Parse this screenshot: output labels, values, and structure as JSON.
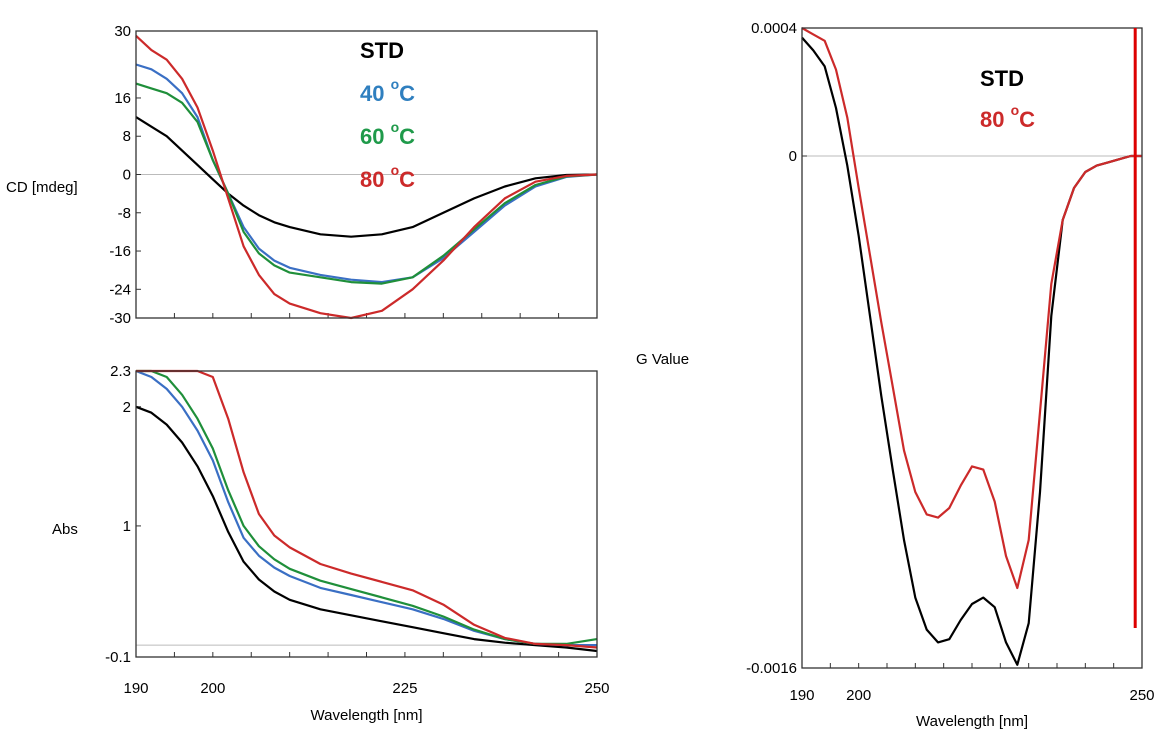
{
  "chart_data": [
    {
      "type": "line",
      "panel": "CD",
      "ylabel": "CD [mdeg]",
      "xlabel": "",
      "xlim": [
        190,
        250
      ],
      "ylim": [
        -30,
        30
      ],
      "xticks": [
        190,
        200,
        225,
        250
      ],
      "yticks": [
        30,
        16,
        8,
        0,
        -8,
        -16,
        -24,
        -30
      ],
      "show_x_ticklabels": false,
      "zero_line": true,
      "legend_position": "top-center",
      "series": [
        {
          "name": "STD",
          "color": "#000000",
          "x": [
            190,
            192,
            194,
            196,
            198,
            200,
            202,
            204,
            206,
            208,
            210,
            214,
            218,
            222,
            226,
            230,
            234,
            238,
            242,
            246,
            250
          ],
          "y": [
            12,
            10,
            8,
            5,
            2,
            -1,
            -4,
            -6.5,
            -8.5,
            -10,
            -11,
            -12.5,
            -13,
            -12.5,
            -11,
            -8,
            -5,
            -2.5,
            -0.8,
            -0.1,
            0
          ]
        },
        {
          "name": "40 °C",
          "color": "#3a6fc4",
          "x": [
            190,
            192,
            194,
            196,
            198,
            200,
            202,
            204,
            206,
            208,
            210,
            214,
            218,
            222,
            226,
            230,
            234,
            238,
            242,
            246,
            250
          ],
          "y": [
            23,
            22,
            20,
            17,
            12,
            3,
            -4,
            -11,
            -15.5,
            -18,
            -19.5,
            -21,
            -22,
            -22.5,
            -21.5,
            -17.5,
            -12,
            -6.5,
            -2.5,
            -0.5,
            0
          ]
        },
        {
          "name": "60 °C",
          "color": "#1f8f3a",
          "x": [
            190,
            192,
            194,
            196,
            198,
            200,
            202,
            204,
            206,
            208,
            210,
            214,
            218,
            222,
            226,
            230,
            234,
            238,
            242,
            246,
            250
          ],
          "y": [
            19,
            18,
            17,
            15,
            11,
            3,
            -4,
            -12,
            -16.5,
            -19,
            -20.5,
            -21.5,
            -22.5,
            -22.8,
            -21.5,
            -17,
            -11.5,
            -6,
            -2.2,
            -0.4,
            0
          ]
        },
        {
          "name": "80 °C",
          "color": "#cc2a2a",
          "x": [
            190,
            192,
            194,
            196,
            198,
            200,
            202,
            204,
            206,
            208,
            210,
            214,
            218,
            222,
            226,
            230,
            234,
            238,
            242,
            246,
            250
          ],
          "y": [
            29,
            26,
            24,
            20,
            14,
            5,
            -5,
            -15,
            -21,
            -25,
            -27,
            -29,
            -30,
            -28.5,
            -24,
            -18,
            -11,
            -5,
            -1.5,
            -0.3,
            0
          ]
        }
      ],
      "annotations": {
        "legend": [
          "STD",
          "40 °C",
          "60 °C",
          "80 °C"
        ]
      }
    },
    {
      "type": "line",
      "panel": "Abs",
      "ylabel": "Abs",
      "xlabel": "Wavelength [nm]",
      "xlim": [
        190,
        250
      ],
      "ylim": [
        -0.1,
        2.3
      ],
      "xticks": [
        190,
        200,
        225,
        250
      ],
      "yticks": [
        2.3,
        2,
        1,
        -0.1
      ],
      "zero_line": true,
      "series": [
        {
          "name": "STD",
          "color": "#000000",
          "x": [
            190,
            192,
            194,
            196,
            198,
            200,
            202,
            204,
            206,
            208,
            210,
            214,
            218,
            222,
            226,
            230,
            234,
            238,
            242,
            246,
            250
          ],
          "y": [
            2.0,
            1.95,
            1.85,
            1.7,
            1.5,
            1.25,
            0.95,
            0.7,
            0.55,
            0.45,
            0.38,
            0.3,
            0.25,
            0.2,
            0.15,
            0.1,
            0.05,
            0.02,
            0.0,
            -0.02,
            -0.05
          ]
        },
        {
          "name": "40 °C",
          "color": "#3a6fc4",
          "x": [
            190,
            192,
            194,
            196,
            198,
            200,
            202,
            204,
            206,
            208,
            210,
            214,
            218,
            222,
            226,
            230,
            234,
            238,
            242,
            246,
            250
          ],
          "y": [
            2.3,
            2.25,
            2.15,
            2.0,
            1.8,
            1.55,
            1.2,
            0.9,
            0.75,
            0.65,
            0.58,
            0.48,
            0.42,
            0.36,
            0.3,
            0.22,
            0.12,
            0.05,
            0.01,
            0.0,
            0.0
          ]
        },
        {
          "name": "60 °C",
          "color": "#1f8f3a",
          "x": [
            190,
            192,
            194,
            196,
            198,
            200,
            202,
            204,
            206,
            208,
            210,
            214,
            218,
            222,
            226,
            230,
            234,
            238,
            242,
            246,
            250
          ],
          "y": [
            2.3,
            2.3,
            2.25,
            2.1,
            1.9,
            1.65,
            1.3,
            1.0,
            0.83,
            0.72,
            0.64,
            0.54,
            0.47,
            0.4,
            0.33,
            0.24,
            0.13,
            0.05,
            0.01,
            0.01,
            0.05
          ]
        },
        {
          "name": "80 °C",
          "color": "#cc2a2a",
          "x": [
            190,
            192,
            194,
            196,
            198,
            200,
            202,
            204,
            206,
            208,
            210,
            214,
            218,
            222,
            226,
            230,
            234,
            238,
            242,
            246,
            250
          ],
          "y": [
            2.3,
            2.3,
            2.3,
            2.3,
            2.3,
            2.25,
            1.9,
            1.45,
            1.1,
            0.92,
            0.82,
            0.68,
            0.6,
            0.53,
            0.46,
            0.34,
            0.17,
            0.06,
            0.01,
            0.0,
            -0.02
          ]
        }
      ]
    },
    {
      "type": "line",
      "panel": "G",
      "ylabel": "G Value",
      "xlabel": "Wavelength [nm]",
      "xlim": [
        190,
        250
      ],
      "ylim": [
        -0.0016,
        0.0004
      ],
      "xticks": [
        190,
        200,
        250
      ],
      "yticks": [
        0.0004,
        0,
        -0.0016
      ],
      "ytick_labels": [
        "0.0004",
        "0",
        "-0.0016"
      ],
      "zero_line": true,
      "legend_position": "top-center",
      "series": [
        {
          "name": "STD",
          "color": "#000000",
          "x": [
            190,
            192,
            194,
            196,
            198,
            200,
            202,
            204,
            206,
            208,
            210,
            212,
            214,
            216,
            218,
            220,
            222,
            224,
            226,
            228,
            230,
            232,
            234,
            236,
            238,
            240,
            242,
            244,
            246,
            248,
            250
          ],
          "y": [
            0.00037,
            0.00033,
            0.00028,
            0.00015,
            -3e-05,
            -0.00025,
            -0.0005,
            -0.00075,
            -0.00098,
            -0.0012,
            -0.00138,
            -0.00148,
            -0.00152,
            -0.00151,
            -0.00145,
            -0.0014,
            -0.00138,
            -0.00141,
            -0.00152,
            -0.00159,
            -0.00146,
            -0.00105,
            -0.0005,
            -0.0002,
            -0.0001,
            -5e-05,
            -3e-05,
            -2e-05,
            -1e-05,
            0.0,
            0.0
          ]
        },
        {
          "name": "80 °C",
          "color": "#cc2a2a",
          "x": [
            190,
            192,
            194,
            196,
            198,
            200,
            202,
            204,
            206,
            208,
            210,
            212,
            214,
            216,
            218,
            220,
            222,
            224,
            226,
            228,
            230,
            232,
            234,
            236,
            238,
            240,
            242,
            244,
            246,
            248,
            250
          ],
          "y": [
            0.0004,
            0.00038,
            0.00036,
            0.00027,
            0.00012,
            -0.0001,
            -0.00031,
            -0.00052,
            -0.00072,
            -0.00092,
            -0.00105,
            -0.00112,
            -0.00113,
            -0.0011,
            -0.00103,
            -0.00097,
            -0.00098,
            -0.00108,
            -0.00125,
            -0.00135,
            -0.0012,
            -0.0008,
            -0.0004,
            -0.0002,
            -0.0001,
            -5e-05,
            -3e-05,
            -2e-05,
            -1e-05,
            0.0,
            0.0
          ]
        }
      ],
      "annotations": {
        "legend": [
          "STD",
          "80 °C"
        ]
      }
    }
  ],
  "legends": {
    "cd": [
      {
        "main": "STD",
        "sup": "",
        "tail": "",
        "color": "#000000"
      },
      {
        "main": "40 ",
        "sup": "o",
        "tail": "C",
        "color": "#2f7fbf"
      },
      {
        "main": "60 ",
        "sup": "o",
        "tail": "C",
        "color": "#1f9a4a"
      },
      {
        "main": "80 ",
        "sup": "o",
        "tail": "C",
        "color": "#cc2a2a"
      }
    ],
    "g": [
      {
        "main": "STD",
        "sup": "",
        "tail": "",
        "color": "#000000"
      },
      {
        "main": "80 ",
        "sup": "o",
        "tail": "C",
        "color": "#cc2a2a"
      }
    ]
  }
}
